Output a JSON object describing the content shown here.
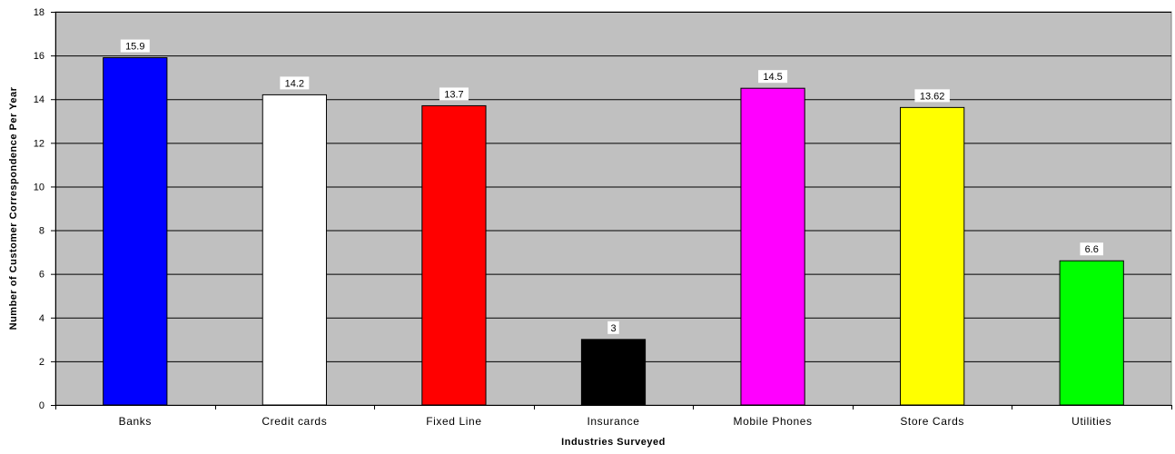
{
  "chart_data": {
    "type": "bar",
    "title": "",
    "xlabel": "Industries Surveyed",
    "ylabel": "Number of Customer Correspondence Per Year",
    "categories": [
      "Banks",
      "Credit cards",
      "Fixed Line",
      "Insurance",
      "Mobile Phones",
      "Store Cards",
      "Utilities"
    ],
    "values": [
      15.9,
      14.2,
      13.7,
      3,
      14.5,
      13.62,
      6.6
    ],
    "data_labels": [
      "15.9",
      "14.2",
      "13.7",
      "3",
      "14.5",
      "13.62",
      "6.6"
    ],
    "bar_colors": [
      "#0000ff",
      "#ffffff",
      "#ff0000",
      "#000000",
      "#ff00ff",
      "#ffff00",
      "#00ff00"
    ],
    "ylim": [
      0,
      18
    ],
    "yticks": [
      0,
      2,
      4,
      6,
      8,
      10,
      12,
      14,
      16,
      18
    ],
    "grid": true,
    "legend": "none",
    "plot_background": "#c0c0c0"
  }
}
